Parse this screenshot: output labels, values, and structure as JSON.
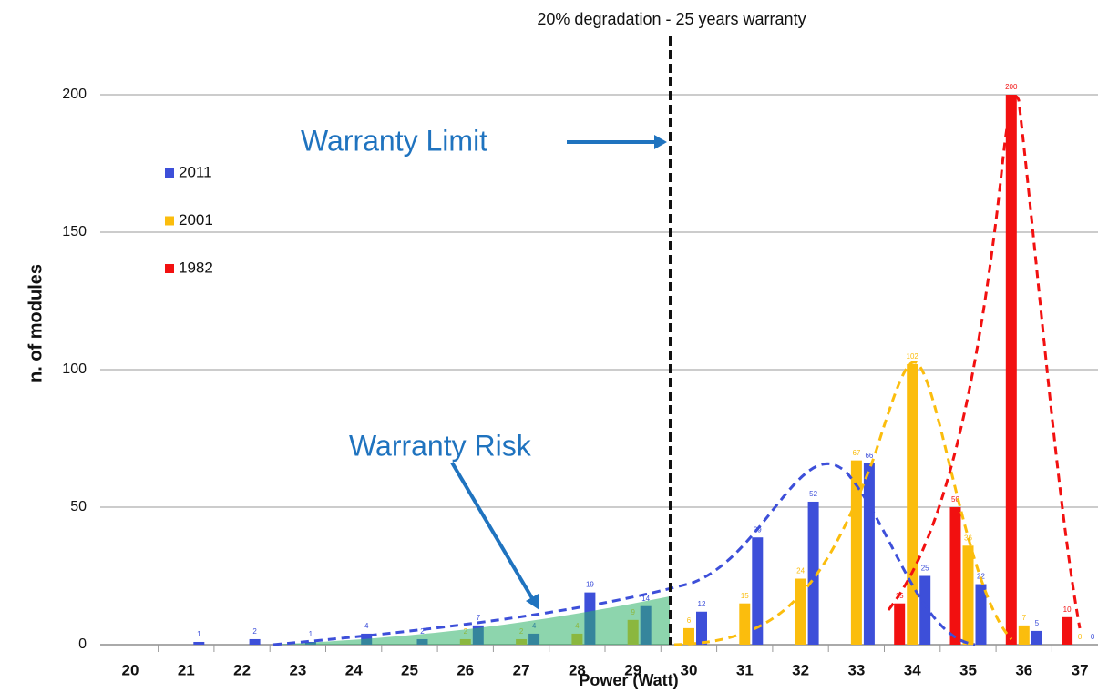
{
  "chart_data": {
    "type": "bar",
    "annotation_top": "20% degradation - 25 years warranty",
    "annotation_limit": "Warranty Limit",
    "annotation_risk": "Warranty Risk",
    "x_label": "Power (Watt)",
    "y_label": "n. of modules",
    "categories": [
      "20",
      "21",
      "22",
      "23",
      "24",
      "25",
      "26",
      "27",
      "28",
      "29",
      "30",
      "31",
      "32",
      "33",
      "34",
      "35",
      "36",
      "37"
    ],
    "series": [
      {
        "name": "2011",
        "color": "#3d4fd9",
        "values": [
          null,
          1,
          2,
          1,
          4,
          2,
          7,
          4,
          19,
          14,
          12,
          39,
          52,
          66,
          25,
          22,
          5,
          0
        ]
      },
      {
        "name": "2001",
        "color": "#fbbd0d",
        "values": [
          null,
          null,
          null,
          null,
          null,
          null,
          2,
          2,
          4,
          9,
          6,
          15,
          24,
          67,
          102,
          36,
          7,
          0
        ]
      },
      {
        "name": "1982",
        "color": "#f21010",
        "values": [
          null,
          null,
          null,
          null,
          null,
          null,
          null,
          null,
          null,
          null,
          null,
          null,
          null,
          null,
          15,
          50,
          200,
          10
        ]
      }
    ],
    "ylim": [
      0,
      220
    ],
    "yticks": [
      0,
      50,
      100,
      150,
      200
    ],
    "grid": true,
    "legend": "upper left"
  }
}
